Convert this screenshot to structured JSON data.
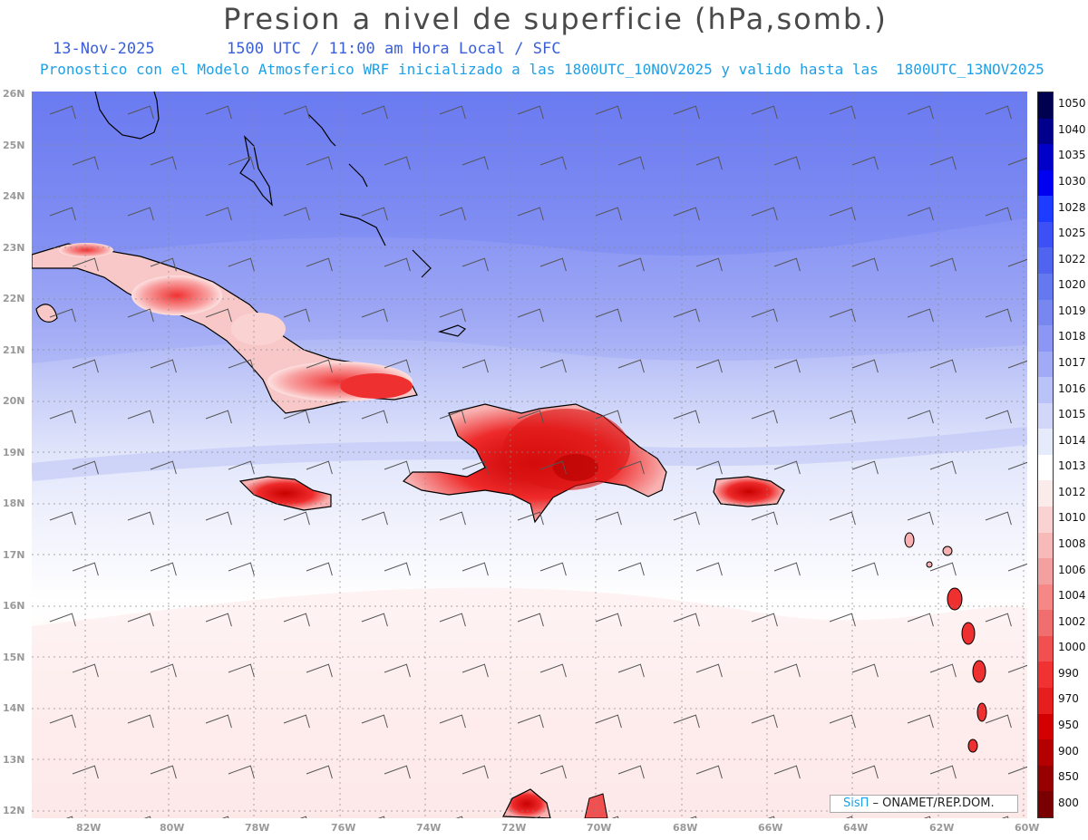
{
  "title": "Presion a nivel de superficie (hPa,somb.)",
  "date": "13-Nov-2025",
  "time_line": "1500 UTC / 11:00 am Hora Local / SFC",
  "forecast_line": "Pronostico con el Modelo Atmosferico WRF inicializado a las 1800UTC_10NOV2025 y valido hasta las  1800UTC_13NOV2025",
  "credit": {
    "logo": "SisΠ",
    "org": " – ONAMET/REP.DOM."
  },
  "latitudes": [
    "26N",
    "25N",
    "24N",
    "23N",
    "22N",
    "21N",
    "20N",
    "19N",
    "18N",
    "17N",
    "16N",
    "15N",
    "14N",
    "13N",
    "12N"
  ],
  "longitudes": [
    "82W",
    "80W",
    "78W",
    "76W",
    "74W",
    "72W",
    "70W",
    "68W",
    "66W",
    "64W",
    "62W",
    "60W"
  ],
  "colorbar": {
    "labels": [
      "1050",
      "1040",
      "1035",
      "1030",
      "1028",
      "1025",
      "1022",
      "1020",
      "1019",
      "1018",
      "1017",
      "1016",
      "1015",
      "1014",
      "1013",
      "1012",
      "1010",
      "1008",
      "1006",
      "1004",
      "1002",
      "1000",
      "990",
      "970",
      "950",
      "900",
      "850",
      "800"
    ],
    "colors": [
      "#000050",
      "#00008c",
      "#0000c8",
      "#0000f0",
      "#1e3cff",
      "#3c50f5",
      "#5064f0",
      "#6478f0",
      "#7887f0",
      "#8c96f5",
      "#a0aaf5",
      "#b9c3f8",
      "#d2d7fa",
      "#e6ebfc",
      "#ffffff",
      "#fcebeb",
      "#fad2d2",
      "#f8b9b9",
      "#f5a0a0",
      "#f58787",
      "#f06e6e",
      "#f05050",
      "#f03232",
      "#e61e1e",
      "#d20000",
      "#b40000",
      "#960000",
      "#780000"
    ]
  },
  "colors": {
    "title": "#4a4a4a",
    "date": "#3a5fd9",
    "forecast": "#1ea0e8",
    "land_high": "#e81e1e"
  }
}
